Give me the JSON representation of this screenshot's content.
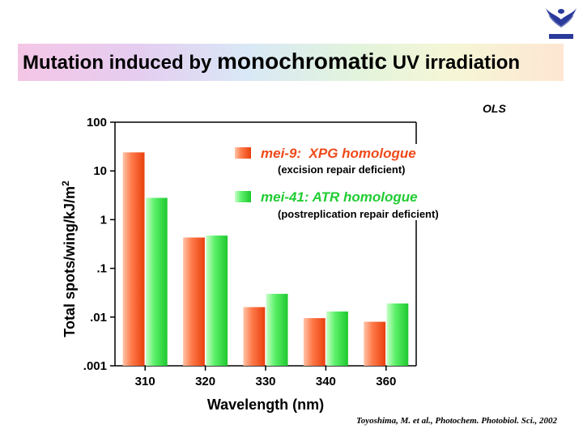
{
  "title": {
    "part1": "Mutation induced by ",
    "part2": "monochromatic",
    "part3": " UV irradiation"
  },
  "corner_label": "OLS",
  "credit": "Toyoshima, M. et al., Photochem. Photobiol. Sci., 2002",
  "logo": {
    "icon": "university-emblem-icon",
    "color": "#2a3a9a"
  },
  "colors": {
    "series1": "#ff5a2a",
    "series2": "#33e64a"
  },
  "chart_data": {
    "type": "bar",
    "scale": "log",
    "categories": [
      "310",
      "320",
      "330",
      "340",
      "360"
    ],
    "xlabel": "Wavelength (nm)",
    "ylabel_main": "Total spots/wing/kJ/m",
    "ylabel_sup": "2",
    "ylim": [
      0.001,
      100
    ],
    "yticks": [
      {
        "value": 100,
        "label": "100"
      },
      {
        "value": 10,
        "label": "10"
      },
      {
        "value": 1,
        "label": "1"
      },
      {
        "value": 0.1,
        "label": ".1"
      },
      {
        "value": 0.01,
        "label": ".01"
      },
      {
        "value": 0.001,
        "label": ".001"
      }
    ],
    "grid": false,
    "legend_position": "top-right",
    "series": [
      {
        "name": "mei-9:  XPG homologue",
        "subtitle": "(excision repair deficient)",
        "values": [
          24,
          0.43,
          0.016,
          0.0095,
          0.008
        ]
      },
      {
        "name": "mei-41: ATR homologue",
        "subtitle": "(postreplication repair deficient)",
        "values": [
          2.8,
          0.47,
          0.03,
          0.013,
          0.019
        ]
      }
    ]
  }
}
